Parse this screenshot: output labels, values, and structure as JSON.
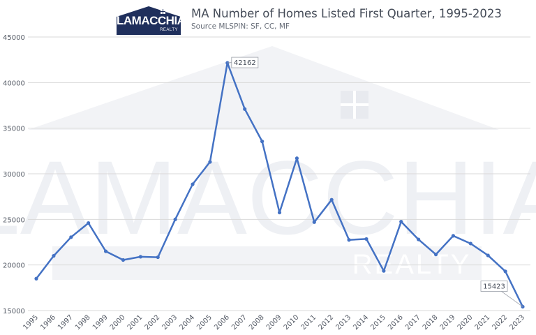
{
  "logo": {
    "text": "LAMACCHIA",
    "sub": "REALTY"
  },
  "header": {
    "title": "MA Number of Homes Listed First Quarter, 1995-2023",
    "subtitle": "Source MLSPIN: SF, CC, MF"
  },
  "watermark": {
    "text": "LAMACCHIA",
    "sub": "REALTY"
  },
  "colors": {
    "line": "#4472c4",
    "grid": "#d9d9d9",
    "logo_bg": "#1f2f5c"
  },
  "chart_data": {
    "type": "line",
    "title": "MA Number of Homes Listed First Quarter, 1995-2023",
    "subtitle": "Source MLSPIN: SF, CC, MF",
    "xlabel": "",
    "ylabel": "",
    "ylim": [
      15000,
      45000
    ],
    "yticks": [
      15000,
      20000,
      25000,
      30000,
      35000,
      40000,
      45000
    ],
    "grid": true,
    "legend": "none",
    "categories": [
      "1995",
      "1996",
      "1997",
      "1998",
      "1999",
      "2000",
      "2001",
      "2002",
      "2003",
      "2004",
      "2005",
      "2006",
      "2007",
      "2008",
      "2009",
      "2010",
      "2011",
      "2012",
      "2013",
      "2014",
      "2015",
      "2016",
      "2017",
      "2018",
      "2019",
      "2020",
      "2021",
      "2022",
      "2023"
    ],
    "series": [
      {
        "values": [
          18500,
          21000,
          23050,
          24600,
          21500,
          20550,
          20900,
          20850,
          25000,
          28850,
          31300,
          42162,
          37100,
          33550,
          25750,
          31700,
          24700,
          27150,
          22750,
          22850,
          19350,
          24750,
          22800,
          21150,
          23200,
          22350,
          21050,
          19300,
          15423
        ]
      }
    ],
    "data_labels": [
      {
        "category": "2006",
        "text": "42162"
      },
      {
        "category": "2023",
        "text": "15423"
      }
    ]
  }
}
